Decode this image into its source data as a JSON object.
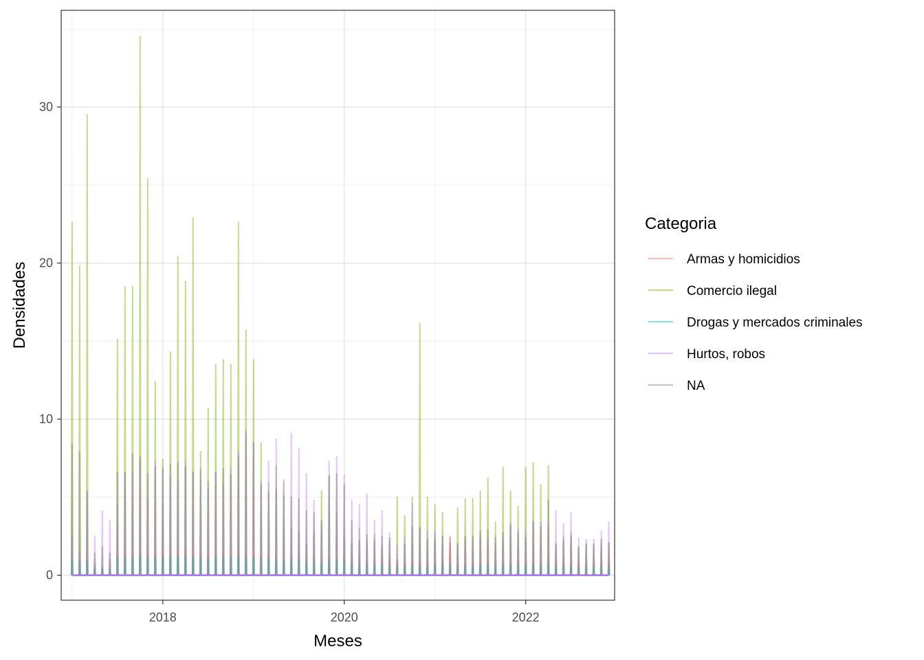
{
  "chart_data": {
    "type": "line",
    "title": "",
    "xlabel": "Meses",
    "ylabel": "Densidades",
    "xlim": [
      2016.88,
      2022.98
    ],
    "ylim": [
      -1.6,
      36.2
    ],
    "x_ticks": [
      2018,
      2020,
      2022
    ],
    "y_ticks": [
      0,
      10,
      20,
      30
    ],
    "grid": true,
    "legend": {
      "title": "Categoria",
      "position": "right",
      "entries": [
        {
          "name": "Armas y homicidios",
          "color": "#F8766D"
        },
        {
          "name": "Comercio ilegal",
          "color": "#7CAE00"
        },
        {
          "name": "Drogas y mercados criminales",
          "color": "#00BFC4"
        },
        {
          "name": "Hurtos, robos",
          "color": "#C77CFF"
        },
        {
          "name": "NA",
          "color": "#808080"
        }
      ]
    },
    "x_start": 2017.0,
    "x_step": 0.08333,
    "series": [
      {
        "name": "Comercio ilegal",
        "color": "#7CAE00",
        "values": [
          22.6,
          19.8,
          29.5,
          0.8,
          0.6,
          1.0,
          15.1,
          18.5,
          18.5,
          34.5,
          25.4,
          12.4,
          7.4,
          14.3,
          20.4,
          18.8,
          22.9,
          7.9,
          10.7,
          13.5,
          13.8,
          13.5,
          22.6,
          15.7,
          13.8,
          8.5,
          5.9,
          7.0,
          6.1,
          3.0,
          2.8,
          2.0,
          2.8,
          5.4,
          6.4,
          4.0,
          2.4,
          2.0,
          3.0,
          2.2,
          2.6,
          1.8,
          2.2,
          5.0,
          3.8,
          5.0,
          16.1,
          5.0,
          4.5,
          4.0,
          2.0,
          4.3,
          4.9,
          4.9,
          5.4,
          6.2,
          3.4,
          6.9,
          5.4,
          4.4,
          6.9,
          7.2,
          5.8,
          7.0,
          2.0,
          2.5,
          2.7,
          1.8,
          2.0,
          1.9,
          2.0,
          2.0
        ]
      },
      {
        "name": "Hurtos, robos",
        "color": "#C77CFF",
        "values": [
          2.5,
          1.6,
          5.2,
          2.5,
          4.1,
          3.5,
          4.5,
          6.5,
          6.5,
          7.3,
          5.0,
          7.3,
          6.7,
          6.3,
          6.1,
          7.3,
          6.6,
          6.1,
          5.5,
          6.6,
          5.8,
          6.8,
          7.9,
          9.3,
          8.4,
          6.0,
          7.3,
          8.7,
          5.9,
          9.1,
          8.1,
          6.5,
          4.8,
          3.3,
          7.3,
          7.6,
          6.4,
          4.8,
          4.5,
          5.2,
          3.5,
          4.1,
          2.7,
          1.9,
          2.5,
          4.6,
          3.1,
          2.8,
          2.8,
          2.5,
          2.1,
          2.0,
          2.3,
          2.2,
          2.6,
          2.3,
          2.0,
          2.4,
          3.1,
          3.0,
          2.9,
          3.5,
          3.4,
          3.1,
          4.1,
          3.3,
          4.0,
          2.4,
          2.3,
          2.3,
          2.8,
          3.4
        ]
      },
      {
        "name": "NA",
        "color": "#808080",
        "values": [
          8.4,
          7.9,
          5.4,
          1.4,
          1.8,
          1.4,
          6.6,
          6.6,
          7.8,
          7.6,
          6.5,
          6.9,
          6.9,
          7.1,
          7.2,
          6.9,
          6.6,
          6.8,
          6.0,
          6.6,
          6.8,
          6.4,
          7.6,
          9.1,
          8.5,
          5.8,
          5.3,
          5.5,
          5.1,
          5.0,
          4.9,
          4.1,
          4.0,
          3.5,
          6.3,
          6.5,
          5.8,
          3.5,
          2.2,
          2.6,
          2.2,
          2.5,
          2.4,
          1.0,
          2.0,
          3.1,
          3.0,
          2.3,
          2.4,
          2.5,
          2.5,
          2.0,
          2.5,
          2.5,
          2.8,
          2.9,
          2.4,
          2.7,
          3.3,
          2.7,
          2.4,
          3.4,
          3.1,
          4.8,
          2.0,
          2.2,
          2.5,
          1.8,
          2.0,
          2.0,
          2.3,
          2.1
        ]
      },
      {
        "name": "Armas y homicidios",
        "color": "#F8766D",
        "values": [
          1.2,
          1.0,
          1.0,
          0.5,
          0.5,
          0.5,
          1.5,
          1.5,
          1.5,
          1.6,
          1.5,
          1.5,
          1.6,
          1.6,
          1.5,
          1.6,
          1.5,
          1.5,
          1.4,
          1.5,
          1.5,
          1.5,
          1.6,
          1.5,
          1.5,
          1.3,
          1.3,
          1.2,
          1.2,
          1.2,
          1.2,
          1.1,
          1.1,
          1.0,
          1.2,
          1.2,
          1.2,
          1.0,
          0.9,
          0.9,
          0.8,
          0.9,
          0.8,
          0.6,
          0.8,
          0.9,
          0.9,
          0.8,
          0.8,
          0.9,
          2.4,
          0.8,
          0.8,
          0.8,
          0.9,
          0.9,
          0.8,
          0.9,
          0.9,
          0.9,
          0.9,
          0.9,
          0.9,
          1.0,
          0.8,
          0.8,
          0.8,
          0.7,
          0.8,
          0.8,
          0.8,
          0.8
        ]
      },
      {
        "name": "Drogas y mercados criminales",
        "color": "#00BFC4",
        "values": [
          1.0,
          0.9,
          0.9,
          0.4,
          0.4,
          0.4,
          1.2,
          1.2,
          1.2,
          1.3,
          1.2,
          1.2,
          1.2,
          1.3,
          1.2,
          1.3,
          1.2,
          1.2,
          1.1,
          1.2,
          1.2,
          1.2,
          1.3,
          1.2,
          1.2,
          1.1,
          1.1,
          1.0,
          1.0,
          1.0,
          1.0,
          0.9,
          0.9,
          0.8,
          1.0,
          1.0,
          1.0,
          0.8,
          0.7,
          0.7,
          0.7,
          0.7,
          0.6,
          0.5,
          0.6,
          0.7,
          0.7,
          0.6,
          0.6,
          0.7,
          0.7,
          0.6,
          0.6,
          0.6,
          0.7,
          0.7,
          0.6,
          0.7,
          0.7,
          0.7,
          0.7,
          0.7,
          0.7,
          0.8,
          0.6,
          0.6,
          0.6,
          0.5,
          0.6,
          0.6,
          0.6,
          0.6
        ]
      }
    ]
  }
}
